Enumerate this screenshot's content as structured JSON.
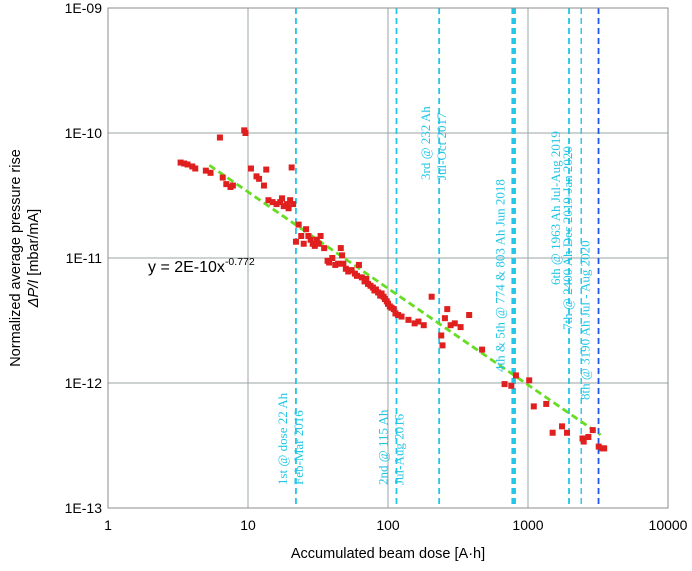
{
  "chart_data": {
    "type": "scatter",
    "xscale": "log",
    "yscale": "log",
    "xlim": [
      1,
      10000
    ],
    "ylim": [
      1e-13,
      1e-09
    ],
    "x_ticks": [
      1,
      10,
      100,
      1000,
      10000
    ],
    "x_tick_labels": [
      "1",
      "10",
      "100",
      "1000",
      "10000"
    ],
    "y_ticks": [
      1e-13,
      1e-12,
      1e-11,
      1e-10,
      1e-09
    ],
    "y_tick_labels": [
      "1E-13",
      "1E-12",
      "1E-11",
      "1E-10",
      "1E-09"
    ],
    "grid": true,
    "xlabel": "Accumulated beam dose [A·h]",
    "ylabel_line1": "Normalized average pressure rise",
    "ylabel_line2_prefix": "ΔP/I",
    "ylabel_line2_suffix": " [mbar/mA]",
    "colors": {
      "points": "#e01f1f",
      "trend": "#66dd22",
      "campaign": "#22c6e6",
      "campaign_last": "#2255ee",
      "grid": "#9aa5a5",
      "frame": "#8c8c8c"
    },
    "fit": {
      "label_prefix": "y = 2E-10x",
      "label_exponent": "-0.772",
      "coefficient": 2e-10,
      "exponent": -0.772,
      "x_range": [
        5.3,
        3300
      ]
    },
    "campaigns": [
      {
        "x": 22,
        "line1": "1st @ dose 22 Ah",
        "line2": "Feb-Mar 2016",
        "width": 1.8,
        "color": "campaign"
      },
      {
        "x": 115,
        "line1": "2nd @ 115 Ah",
        "line2": "Jul-Aug 2016",
        "width": 1.8,
        "color": "campaign"
      },
      {
        "x": 232,
        "line1": "3rd @ 232 Ah",
        "line2": "Jul-Oct 2017",
        "width": 1.8,
        "color": "campaign"
      },
      {
        "x": 790,
        "line1": "4th & 5th @ 774 & 803 Ah Jun 2018",
        "line2": "",
        "width": 4.5,
        "color": "campaign"
      },
      {
        "x": 1963,
        "line1": "6th @ 1963 Ah Jul-Aug 2019",
        "line2": "",
        "width": 1.8,
        "color": "campaign"
      },
      {
        "x": 2400,
        "line1": "7th @ 2400 Ah Dec 2019-Jan 2020",
        "line2": "",
        "width": 1.4,
        "color": "campaign"
      },
      {
        "x": 3190,
        "line1": "8th @ 3190 Ah Jul - Aug 2020",
        "line2": "",
        "width": 1.8,
        "color": "campaign_last"
      }
    ],
    "points": [
      [
        3.3,
        5.8e-11
      ],
      [
        3.5,
        5.7e-11
      ],
      [
        3.7,
        5.6e-11
      ],
      [
        4.0,
        5.4e-11
      ],
      [
        4.2,
        5.2e-11
      ],
      [
        5.0,
        5e-11
      ],
      [
        5.4,
        4.8e-11
      ],
      [
        6.3,
        9.2e-11
      ],
      [
        6.6,
        4.4e-11
      ],
      [
        7.0,
        3.9e-11
      ],
      [
        7.5,
        3.7e-11
      ],
      [
        7.8,
        3.8e-11
      ],
      [
        9.4,
        1.05e-10
      ],
      [
        9.6,
        1e-10
      ],
      [
        10.5,
        5.2e-11
      ],
      [
        11.5,
        4.5e-11
      ],
      [
        12,
        4.3e-11
      ],
      [
        13,
        3.8e-11
      ],
      [
        13.5,
        5.1e-11
      ],
      [
        14,
        2.9e-11
      ],
      [
        15,
        2.8e-11
      ],
      [
        16,
        2.7e-11
      ],
      [
        17,
        2.8e-11
      ],
      [
        17.5,
        3e-11
      ],
      [
        18,
        2.6e-11
      ],
      [
        19,
        2.7e-11
      ],
      [
        19.5,
        2.5e-11
      ],
      [
        20,
        2.9e-11
      ],
      [
        20.5,
        5.3e-11
      ],
      [
        21,
        2.7e-11
      ],
      [
        22,
        1.35e-11
      ],
      [
        23,
        1.85e-11
      ],
      [
        24,
        1.5e-11
      ],
      [
        25,
        1.3e-11
      ],
      [
        26,
        1.7e-11
      ],
      [
        27,
        1.5e-11
      ],
      [
        28,
        1.4e-11
      ],
      [
        29,
        1.3e-11
      ],
      [
        30,
        1.25e-11
      ],
      [
        31,
        1.4e-11
      ],
      [
        32,
        1.3e-11
      ],
      [
        33,
        1.5e-11
      ],
      [
        35,
        1.2e-11
      ],
      [
        37,
        9.5e-12
      ],
      [
        38,
        9.2e-12
      ],
      [
        40,
        1e-11
      ],
      [
        42,
        8.8e-12
      ],
      [
        44,
        9e-12
      ],
      [
        46,
        1.2e-11
      ],
      [
        47,
        1.05e-11
      ],
      [
        48,
        9e-12
      ],
      [
        50,
        8.2e-12
      ],
      [
        52,
        7.8e-12
      ],
      [
        55,
        8e-12
      ],
      [
        58,
        7.5e-12
      ],
      [
        60,
        7.2e-12
      ],
      [
        62,
        8.8e-12
      ],
      [
        65,
        7e-12
      ],
      [
        68,
        6.5e-12
      ],
      [
        70,
        6.8e-12
      ],
      [
        72,
        6.2e-12
      ],
      [
        75,
        6e-12
      ],
      [
        78,
        5.8e-12
      ],
      [
        80,
        5.5e-12
      ],
      [
        82,
        5.6e-12
      ],
      [
        85,
        5.3e-12
      ],
      [
        88,
        5e-12
      ],
      [
        90,
        5.2e-12
      ],
      [
        93,
        4.9e-12
      ],
      [
        95,
        4.7e-12
      ],
      [
        98,
        4.5e-12
      ],
      [
        100,
        4.3e-12
      ],
      [
        103,
        4.1e-12
      ],
      [
        106,
        4e-12
      ],
      [
        110,
        3.9e-12
      ],
      [
        113,
        3.6e-12
      ],
      [
        118,
        3.5e-12
      ],
      [
        125,
        3.4e-12
      ],
      [
        140,
        3.2e-12
      ],
      [
        155,
        3e-12
      ],
      [
        165,
        3.1e-12
      ],
      [
        180,
        2.9e-12
      ],
      [
        205,
        4.9e-12
      ],
      [
        240,
        2.4e-12
      ],
      [
        245,
        2e-12
      ],
      [
        255,
        3.3e-12
      ],
      [
        265,
        3.9e-12
      ],
      [
        280,
        2.9e-12
      ],
      [
        300,
        3e-12
      ],
      [
        330,
        2.8e-12
      ],
      [
        380,
        3.5e-12
      ],
      [
        470,
        1.85e-12
      ],
      [
        680,
        9.8e-13
      ],
      [
        760,
        9.5e-13
      ],
      [
        820,
        1.15e-12
      ],
      [
        1020,
        1.05e-12
      ],
      [
        1100,
        6.5e-13
      ],
      [
        1350,
        6.8e-13
      ],
      [
        1500,
        4e-13
      ],
      [
        1750,
        4.5e-13
      ],
      [
        1900,
        4e-13
      ],
      [
        2450,
        3.6e-13
      ],
      [
        2500,
        3.4e-13
      ],
      [
        2700,
        3.7e-13
      ],
      [
        2900,
        4.2e-13
      ],
      [
        3200,
        3.1e-13
      ],
      [
        3400,
        3e-13
      ],
      [
        3500,
        3e-13
      ]
    ]
  }
}
